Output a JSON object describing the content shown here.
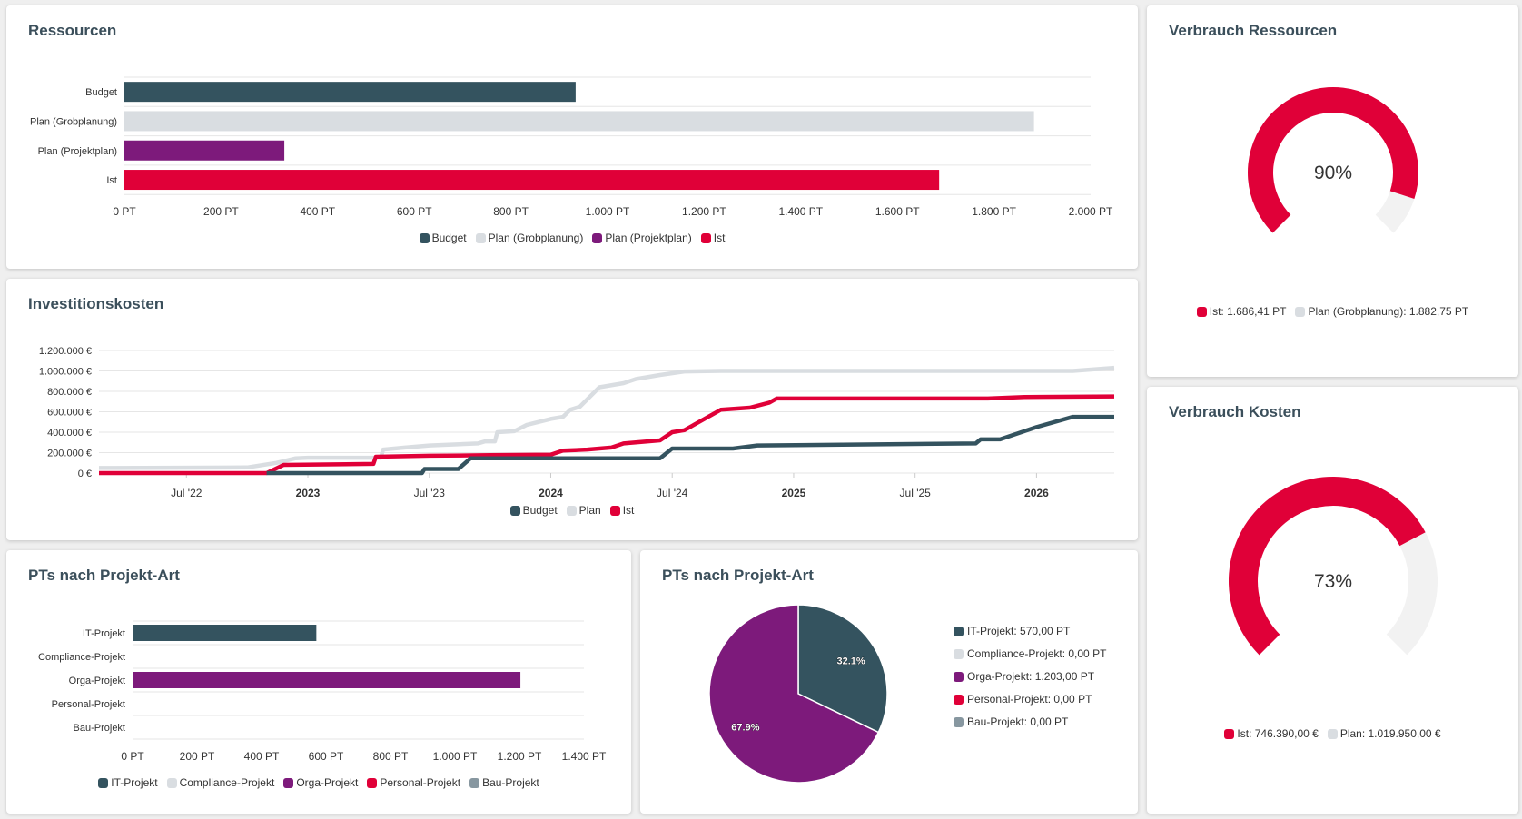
{
  "chart_data": [
    {
      "type": "bar",
      "title": "Ressourcen",
      "categories": [
        "Budget",
        "Plan (Grobplanung)",
        "Plan (Projektplan)",
        "Ist"
      ],
      "values": [
        934,
        1882.75,
        331,
        1686.41
      ],
      "colors": [
        "#34535f",
        "#d9dde1",
        "#7d1a7b",
        "#e00038"
      ],
      "xlim": [
        0,
        2000
      ],
      "xticks": [
        "0 PT",
        "200 PT",
        "400 PT",
        "600 PT",
        "800 PT",
        "1.000 PT",
        "1.200 PT",
        "1.400 PT",
        "1.600 PT",
        "1.800 PT",
        "2.000 PT"
      ],
      "legend": [
        "Budget",
        "Plan (Grobplanung)",
        "Plan (Projektplan)",
        "Ist"
      ],
      "unit": "PT"
    },
    {
      "type": "line",
      "title": "Investitionskosten",
      "xlim": [
        2022.14,
        2026.32
      ],
      "ylim": [
        0,
        1200000
      ],
      "yticks": [
        {
          "v": 0,
          "label": "0 €"
        },
        {
          "v": 200000,
          "label": "200.000 €"
        },
        {
          "v": 400000,
          "label": "400.000 €"
        },
        {
          "v": 600000,
          "label": "600.000 €"
        },
        {
          "v": 800000,
          "label": "800.000 €"
        },
        {
          "v": 1000000,
          "label": "1.000.000 €"
        },
        {
          "v": 1200000,
          "label": "1.200.000 €"
        }
      ],
      "xticks": [
        {
          "v": 2022.5,
          "label": "Jul '22",
          "bold": false
        },
        {
          "v": 2023.0,
          "label": "2023",
          "bold": true
        },
        {
          "v": 2023.5,
          "label": "Jul '23",
          "bold": false
        },
        {
          "v": 2024.0,
          "label": "2024",
          "bold": true
        },
        {
          "v": 2024.5,
          "label": "Jul '24",
          "bold": false
        },
        {
          "v": 2025.0,
          "label": "2025",
          "bold": true
        },
        {
          "v": 2025.5,
          "label": "Jul '25",
          "bold": false
        },
        {
          "v": 2026.0,
          "label": "2026",
          "bold": true
        }
      ],
      "series": [
        {
          "name": "Plan",
          "color": "#d9dde1",
          "points": [
            [
              2022.14,
              50000
            ],
            [
              2022.75,
              55000
            ],
            [
              2022.87,
              100000
            ],
            [
              2022.95,
              145000
            ],
            [
              2023.0,
              150000
            ],
            [
              2023.3,
              150000
            ],
            [
              2023.31,
              230000
            ],
            [
              2023.4,
              250000
            ],
            [
              2023.5,
              270000
            ],
            [
              2023.7,
              290000
            ],
            [
              2023.73,
              310000
            ],
            [
              2023.77,
              310000
            ],
            [
              2023.78,
              400000
            ],
            [
              2023.85,
              410000
            ],
            [
              2023.9,
              470000
            ],
            [
              2024.0,
              530000
            ],
            [
              2024.05,
              550000
            ],
            [
              2024.08,
              620000
            ],
            [
              2024.12,
              650000
            ],
            [
              2024.2,
              840000
            ],
            [
              2024.3,
              880000
            ],
            [
              2024.35,
              920000
            ],
            [
              2024.45,
              960000
            ],
            [
              2024.55,
              995000
            ],
            [
              2024.7,
              1000000
            ],
            [
              2026.15,
              1000000
            ],
            [
              2026.32,
              1030000
            ]
          ]
        },
        {
          "name": "Ist",
          "color": "#e00038",
          "points": [
            [
              2022.14,
              0
            ],
            [
              2022.83,
              0
            ],
            [
              2022.9,
              80000
            ],
            [
              2023.27,
              90000
            ],
            [
              2023.28,
              160000
            ],
            [
              2023.5,
              170000
            ],
            [
              2023.75,
              175000
            ],
            [
              2024.0,
              180000
            ],
            [
              2024.05,
              220000
            ],
            [
              2024.15,
              230000
            ],
            [
              2024.25,
              250000
            ],
            [
              2024.3,
              290000
            ],
            [
              2024.45,
              320000
            ],
            [
              2024.5,
              400000
            ],
            [
              2024.55,
              420000
            ],
            [
              2024.7,
              620000
            ],
            [
              2024.82,
              640000
            ],
            [
              2024.9,
              690000
            ],
            [
              2024.93,
              730000
            ],
            [
              2025.8,
              730000
            ],
            [
              2025.95,
              745000
            ],
            [
              2026.32,
              750000
            ]
          ]
        },
        {
          "name": "Budget",
          "color": "#34535f",
          "points": [
            [
              2022.83,
              0
            ],
            [
              2023.47,
              0
            ],
            [
              2023.48,
              40000
            ],
            [
              2023.62,
              40000
            ],
            [
              2023.67,
              145000
            ],
            [
              2024.45,
              145000
            ],
            [
              2024.5,
              240000
            ],
            [
              2024.75,
              240000
            ],
            [
              2024.85,
              270000
            ],
            [
              2025.75,
              290000
            ],
            [
              2025.77,
              330000
            ],
            [
              2025.85,
              330000
            ],
            [
              2026.0,
              450000
            ],
            [
              2026.15,
              550000
            ],
            [
              2026.32,
              550000
            ]
          ]
        }
      ],
      "legend": [
        {
          "name": "Budget",
          "color": "#34535f"
        },
        {
          "name": "Plan",
          "color": "#d9dde1"
        },
        {
          "name": "Ist",
          "color": "#e00038"
        }
      ]
    },
    {
      "type": "bar",
      "title": "PTs nach Projekt-Art",
      "categories": [
        "IT-Projekt",
        "Compliance-Projekt",
        "Orga-Projekt",
        "Personal-Projekt",
        "Bau-Projekt"
      ],
      "values": [
        570,
        0,
        1203,
        0,
        0
      ],
      "colors": [
        "#34535f",
        "#d9dde1",
        "#7d1a7b",
        "#e00038",
        "#8797a0"
      ],
      "xlim": [
        0,
        1400
      ],
      "xticks": [
        "0 PT",
        "200 PT",
        "400 PT",
        "600 PT",
        "800 PT",
        "1.000 PT",
        "1.200 PT",
        "1.400 PT"
      ],
      "legend": [
        "IT-Projekt",
        "Compliance-Projekt",
        "Orga-Projekt",
        "Personal-Projekt",
        "Bau-Projekt"
      ]
    },
    {
      "type": "pie",
      "title": "PTs nach Projekt-Art",
      "slices": [
        {
          "label": "IT-Projekt",
          "value": 570,
          "color": "#34535f",
          "pct_label": "32.1%",
          "legend": "IT-Projekt: 570,00 PT"
        },
        {
          "label": "Compliance-Projekt",
          "value": 0,
          "color": "#d9dde1",
          "pct_label": "",
          "legend": "Compliance-Projekt: 0,00 PT"
        },
        {
          "label": "Orga-Projekt",
          "value": 1203,
          "color": "#7d1a7b",
          "pct_label": "67.9%",
          "legend": "Orga-Projekt: 1.203,00 PT"
        },
        {
          "label": "Personal-Projekt",
          "value": 0,
          "color": "#e00038",
          "pct_label": "",
          "legend": "Personal-Projekt: 0,00 PT"
        },
        {
          "label": "Bau-Projekt",
          "value": 0,
          "color": "#8797a0",
          "pct_label": "",
          "legend": "Bau-Projekt: 0,00 PT"
        }
      ]
    },
    {
      "type": "gauge",
      "title": "Verbrauch Ressourcen",
      "value": 0.9,
      "value_label": "90%",
      "color": "#e00038",
      "track_color": "#f2f2f2",
      "legend": [
        {
          "label": "Ist: 1.686,41 PT",
          "color": "#e00038"
        },
        {
          "label": "Plan (Grobplanung): 1.882,75 PT",
          "color": "#d9dde1"
        }
      ]
    },
    {
      "type": "gauge",
      "title": "Verbrauch Kosten",
      "value": 0.73,
      "value_label": "73%",
      "color": "#e00038",
      "track_color": "#f2f2f2",
      "legend": [
        {
          "label": "Ist: 746.390,00 €",
          "color": "#e00038"
        },
        {
          "label": "Plan: 1.019.950,00 €",
          "color": "#d9dde1"
        }
      ]
    }
  ]
}
